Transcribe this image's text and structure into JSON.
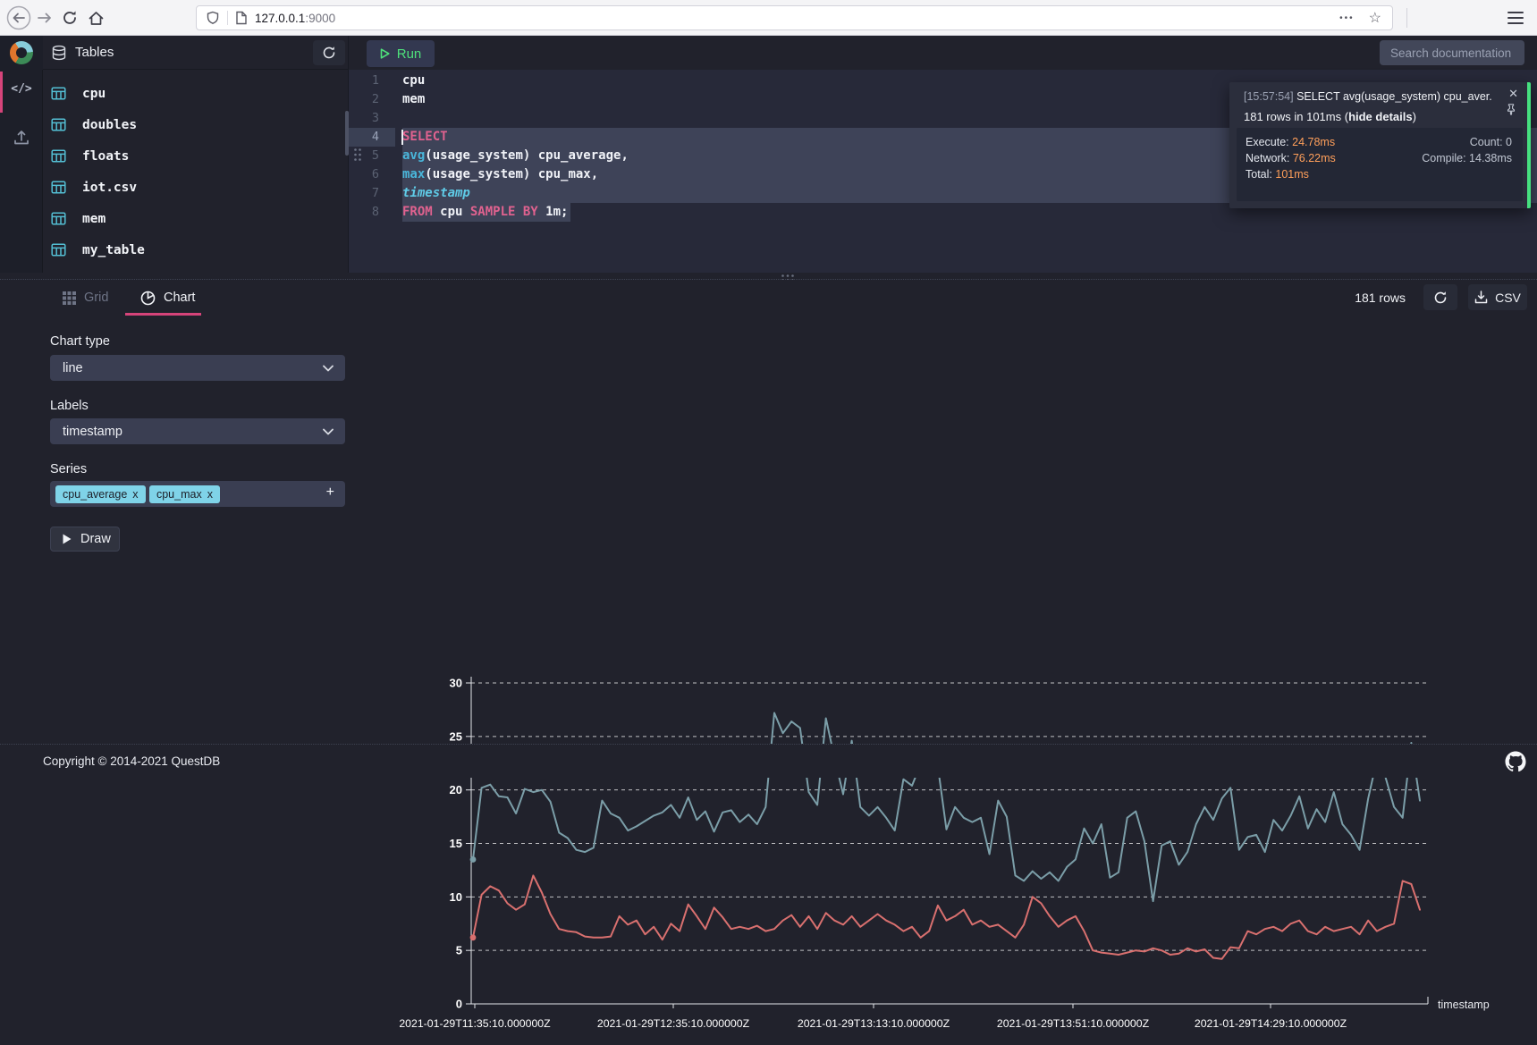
{
  "browser": {
    "url_host": "127.0.0.1",
    "url_port": ":9000"
  },
  "header": {
    "tables_title": "Tables",
    "run_label": "Run",
    "search_placeholder": "Search documentation"
  },
  "icons": {
    "code": "</>",
    "ellipsis": "•••",
    "star": "☆",
    "close": "✕",
    "plus": "+",
    "chip_remove": "x"
  },
  "sidebar": {
    "tables": [
      {
        "name": "cpu"
      },
      {
        "name": "doubles"
      },
      {
        "name": "floats"
      },
      {
        "name": "iot.csv"
      },
      {
        "name": "mem"
      },
      {
        "name": "my_table"
      }
    ]
  },
  "editor": {
    "lines": [
      {
        "n": "1",
        "sel": "none",
        "tokens": [
          {
            "text": "cpu",
            "c": "plain"
          }
        ]
      },
      {
        "n": "2",
        "sel": "none",
        "tokens": [
          {
            "text": "mem",
            "c": "plain"
          }
        ]
      },
      {
        "n": "3",
        "sel": "none",
        "tokens": []
      },
      {
        "n": "4",
        "sel": "full",
        "active": true,
        "caret": true,
        "tokens": [
          {
            "text": "SELECT",
            "c": "kw"
          }
        ]
      },
      {
        "n": "5",
        "sel": "full",
        "tokens": [
          {
            "text": "avg",
            "c": "fn"
          },
          {
            "text": "(usage_system) cpu_average,",
            "c": "plain"
          }
        ]
      },
      {
        "n": "6",
        "sel": "full",
        "tokens": [
          {
            "text": "max",
            "c": "fn"
          },
          {
            "text": "(usage_system) cpu_max,",
            "c": "plain"
          }
        ]
      },
      {
        "n": "7",
        "sel": "full",
        "tokens": [
          {
            "text": "timestamp",
            "c": "type"
          }
        ]
      },
      {
        "n": "8",
        "sel": "text",
        "tokens": [
          {
            "text": "FROM",
            "c": "kw"
          },
          {
            "text": " cpu ",
            "c": "plain"
          },
          {
            "text": "SAMPLE BY",
            "c": "kw"
          },
          {
            "text": " 1m;",
            "c": "plain"
          }
        ]
      }
    ]
  },
  "notification": {
    "time": "[15:57:54]",
    "query": " SELECT avg(usage_system) cpu_aver...",
    "summary_prefix": "181 rows in 101ms (",
    "summary_link": "hide details",
    "summary_suffix": ")",
    "execute_label": "Execute:",
    "execute_value": "24.78ms",
    "network_label": "Network:",
    "network_value": "76.22ms",
    "total_label": "Total:",
    "total_value": "101ms",
    "count_line": "Count: 0",
    "compile_line": "Compile: 14.38ms"
  },
  "results_toolbar": {
    "grid_tab": "Grid",
    "chart_tab": "Chart",
    "row_count": "181 rows",
    "csv_label": "CSV"
  },
  "chart_controls": {
    "chart_type_label": "Chart type",
    "chart_type_value": "line",
    "labels_label": "Labels",
    "labels_value": "timestamp",
    "series_label": "Series",
    "series_chips": [
      {
        "label": "cpu_average"
      },
      {
        "label": "cpu_max"
      }
    ],
    "draw_label": "Draw"
  },
  "colors": {
    "accent_pink": "#d6447a",
    "run_green": "#4ee17b",
    "chip_blue": "#7fd3e8",
    "popup_success_green": "#46e07f",
    "stat_orange": "#ff9f5a"
  },
  "chart_data": {
    "type": "line",
    "title": "",
    "xlabel": "timestamp",
    "ylabel": "",
    "ylim": [
      0,
      30
    ],
    "yticks": [
      0,
      5,
      10,
      15,
      20,
      25,
      30
    ],
    "grid": "dashed-horizontal",
    "legend": "none",
    "x_tick_labels": [
      "2021-01-29T11:35:10.000000Z",
      "2021-01-29T12:35:10.000000Z",
      "2021-01-29T13:13:10.000000Z",
      "2021-01-29T13:51:10.000000Z",
      "2021-01-29T14:29:10.000000Z"
    ],
    "series": [
      {
        "name": "cpu_max",
        "color": "#7b9ea8",
        "values": [
          13.5,
          20.2,
          20.5,
          19.4,
          19.3,
          17.8,
          20.1,
          19.8,
          20.0,
          18.9,
          16.0,
          15.5,
          14.4,
          14.2,
          14.6,
          19.0,
          17.8,
          17.4,
          16.2,
          16.6,
          17.1,
          17.6,
          17.9,
          18.6,
          17.4,
          19.3,
          17.2,
          18.0,
          16.1,
          17.9,
          18.1,
          17.0,
          17.7,
          16.8,
          18.4,
          27.2,
          25.3,
          26.4,
          25.8,
          19.8,
          18.6,
          26.7,
          23.0,
          19.6,
          24.6,
          18.4,
          17.6,
          18.4,
          17.4,
          16.2,
          21.0,
          20.4,
          22.4,
          22.5,
          22.2,
          16.3,
          18.4,
          17.4,
          17.0,
          17.4,
          14.0,
          19.0,
          17.5,
          12.0,
          11.5,
          12.4,
          11.7,
          12.3,
          11.5,
          12.8,
          13.5,
          16.4,
          15.0,
          16.8,
          11.8,
          12.3,
          17.4,
          18.0,
          15.2,
          9.6,
          14.8,
          15.2,
          13.0,
          14.2,
          16.8,
          18.4,
          17.2,
          19.2,
          20.2,
          14.4,
          15.6,
          15.8,
          14.2,
          17.2,
          16.2,
          17.6,
          19.4,
          16.4,
          18.2,
          17.0,
          19.8,
          16.8,
          15.8,
          14.4,
          19.2,
          22.8,
          21.2,
          18.4,
          17.4,
          24.4,
          19.0
        ]
      },
      {
        "name": "cpu_average",
        "color": "#d9706f",
        "values": [
          6.2,
          10.2,
          11.0,
          10.6,
          9.4,
          8.8,
          9.3,
          12.0,
          10.4,
          8.4,
          7.0,
          6.8,
          6.7,
          6.3,
          6.2,
          6.2,
          6.3,
          8.2,
          7.4,
          7.8,
          6.5,
          7.2,
          6.0,
          7.5,
          6.8,
          9.3,
          8.2,
          7.0,
          9.0,
          8.1,
          7.0,
          7.2,
          7.0,
          7.3,
          6.8,
          7.0,
          7.8,
          8.3,
          7.2,
          8.2,
          7.0,
          8.5,
          7.8,
          7.4,
          8.2,
          7.2,
          7.8,
          8.4,
          7.8,
          7.4,
          6.8,
          7.2,
          6.2,
          6.8,
          9.2,
          7.8,
          8.2,
          8.8,
          7.4,
          7.8,
          7.2,
          7.4,
          6.8,
          6.2,
          7.4,
          10.0,
          9.4,
          8.2,
          7.2,
          7.8,
          8.2,
          6.8,
          5.0,
          4.8,
          4.7,
          4.6,
          4.8,
          5.0,
          4.9,
          5.2,
          5.0,
          4.6,
          4.7,
          5.2,
          4.9,
          5.1,
          4.3,
          4.2,
          5.3,
          5.2,
          6.8,
          6.5,
          7.0,
          7.2,
          6.8,
          7.5,
          7.8,
          6.8,
          6.5,
          7.2,
          6.8,
          7.0,
          7.2,
          6.5,
          7.8,
          6.8,
          7.2,
          7.5,
          11.5,
          11.2,
          8.8
        ]
      }
    ]
  },
  "footer": {
    "copyright": "Copyright © 2014-2021 QuestDB"
  }
}
